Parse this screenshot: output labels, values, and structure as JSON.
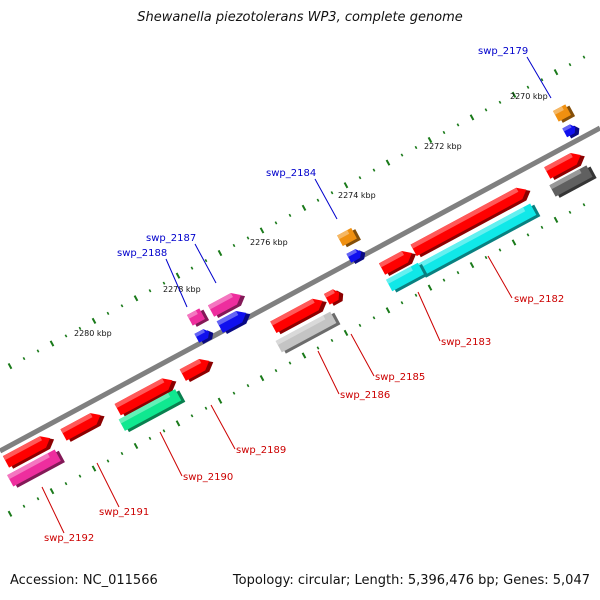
{
  "title": "Shewanella piezotolerans WP3, complete genome",
  "footer": {
    "accession": "Accession: NC_011566",
    "summary": "Topology: circular; Length: 5,396,476 bp; Genes: 5,047"
  },
  "ruler": [
    "2270 kbp",
    "2272 kbp",
    "2274 kbp",
    "2276 kbp",
    "2278 kbp",
    "2280 kbp"
  ],
  "colors": {
    "backbone": "#808080",
    "tick": "#1a7a1a",
    "label_top": "#0000cc",
    "label_bottom": "#cc0000",
    "red": "#ff0000",
    "pink": "#ee2e9e",
    "blue": "#1010ee",
    "orange": "#f09010",
    "cyan": "#10e8e8",
    "green": "#10e890",
    "silver": "#c4c4c4",
    "darkgray": "#606060"
  },
  "genes_top": [
    "swp_2179",
    "swp_2184",
    "swp_2187",
    "swp_2188"
  ],
  "genes_bottom": [
    "swp_2182",
    "swp_2183",
    "swp_2185",
    "swp_2186",
    "swp_2189",
    "swp_2190",
    "swp_2191",
    "swp_2192"
  ]
}
